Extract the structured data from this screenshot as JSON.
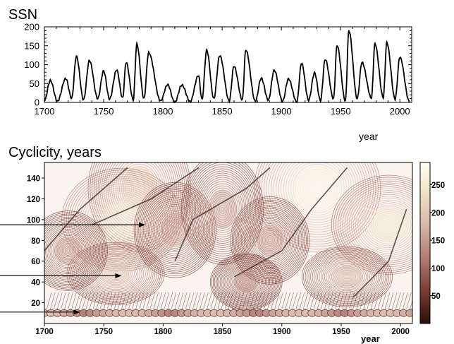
{
  "chart_data": [
    {
      "type": "line",
      "title": "SSN",
      "xlabel": "year",
      "ylabel": "",
      "xlim": [
        1700,
        2010
      ],
      "ylim": [
        0,
        200
      ],
      "x_ticks": [
        "1700",
        "1750",
        "1800",
        "1850",
        "1900",
        "1950",
        "2000"
      ],
      "y_ticks": [
        "0",
        "50",
        "100",
        "150",
        "200"
      ],
      "series": [
        {
          "x": [
            1700,
            1705,
            1711,
            1718,
            1723,
            1727,
            1733,
            1738,
            1745,
            1750,
            1755,
            1761,
            1766,
            1769,
            1775,
            1778,
            1784,
            1788,
            1798,
            1804,
            1810,
            1816,
            1823,
            1830,
            1833,
            1837,
            1843,
            1848,
            1856,
            1860,
            1867,
            1870,
            1878,
            1883,
            1889,
            1894,
            1901,
            1906,
            1913,
            1917,
            1923,
            1928,
            1933,
            1937,
            1944,
            1947,
            1954,
            1957,
            1964,
            1968,
            1976,
            1979,
            1986,
            1989,
            1996,
            2000,
            2008
          ],
          "y": [
            5,
            58,
            3,
            63,
            11,
            122,
            7,
            111,
            10,
            83,
            9,
            86,
            12,
            106,
            7,
            154,
            10,
            132,
            4,
            47,
            0,
            46,
            2,
            71,
            8,
            138,
            10,
            124,
            4,
            96,
            7,
            139,
            3,
            64,
            6,
            85,
            3,
            62,
            1,
            104,
            6,
            78,
            5,
            114,
            10,
            151,
            4,
            190,
            10,
            106,
            12,
            155,
            13,
            158,
            9,
            120,
            3
          ]
        }
      ]
    },
    {
      "type": "heatmap",
      "title": "Cyclicity, years",
      "xlabel": "year",
      "ylabel": "",
      "xlim": [
        1700,
        2010
      ],
      "ylim": [
        0,
        155
      ],
      "x_ticks": [
        "1700",
        "1750",
        "1800",
        "1850",
        "1900",
        "1950",
        "2000"
      ],
      "y_ticks": [
        "20",
        "40",
        "60",
        "80",
        "100",
        "120",
        "140"
      ],
      "colorbar": {
        "range": [
          0,
          290
        ],
        "ticks": [
          "50",
          "100",
          "150",
          "200",
          "250"
        ],
        "colors": [
          "#2a1008",
          "#7a3a34",
          "#b07a72",
          "#d8b8ac",
          "#f0e4c8",
          "#fffff2"
        ]
      },
      "annotation_arrows_at_period": [
        95,
        46,
        11
      ],
      "regions": [
        {
          "x": 1930,
          "period": 130,
          "level": 280
        },
        {
          "x": 1780,
          "period": 130,
          "level": 210
        },
        {
          "x": 1990,
          "period": 95,
          "level": 245
        },
        {
          "x": 1765,
          "period": 100,
          "level": 260
        },
        {
          "x": 1760,
          "period": 48,
          "level": 195
        },
        {
          "x": 1810,
          "period": 90,
          "level": 150
        },
        {
          "x": 1890,
          "period": 80,
          "level": 140
        },
        {
          "x": 1850,
          "period": 110,
          "level": 150
        },
        {
          "x": 1955,
          "period": 45,
          "level": 175
        },
        {
          "x": 1720,
          "period": 70,
          "level": 140
        },
        {
          "x": 1870,
          "period": 40,
          "level": 120
        }
      ]
    }
  ]
}
